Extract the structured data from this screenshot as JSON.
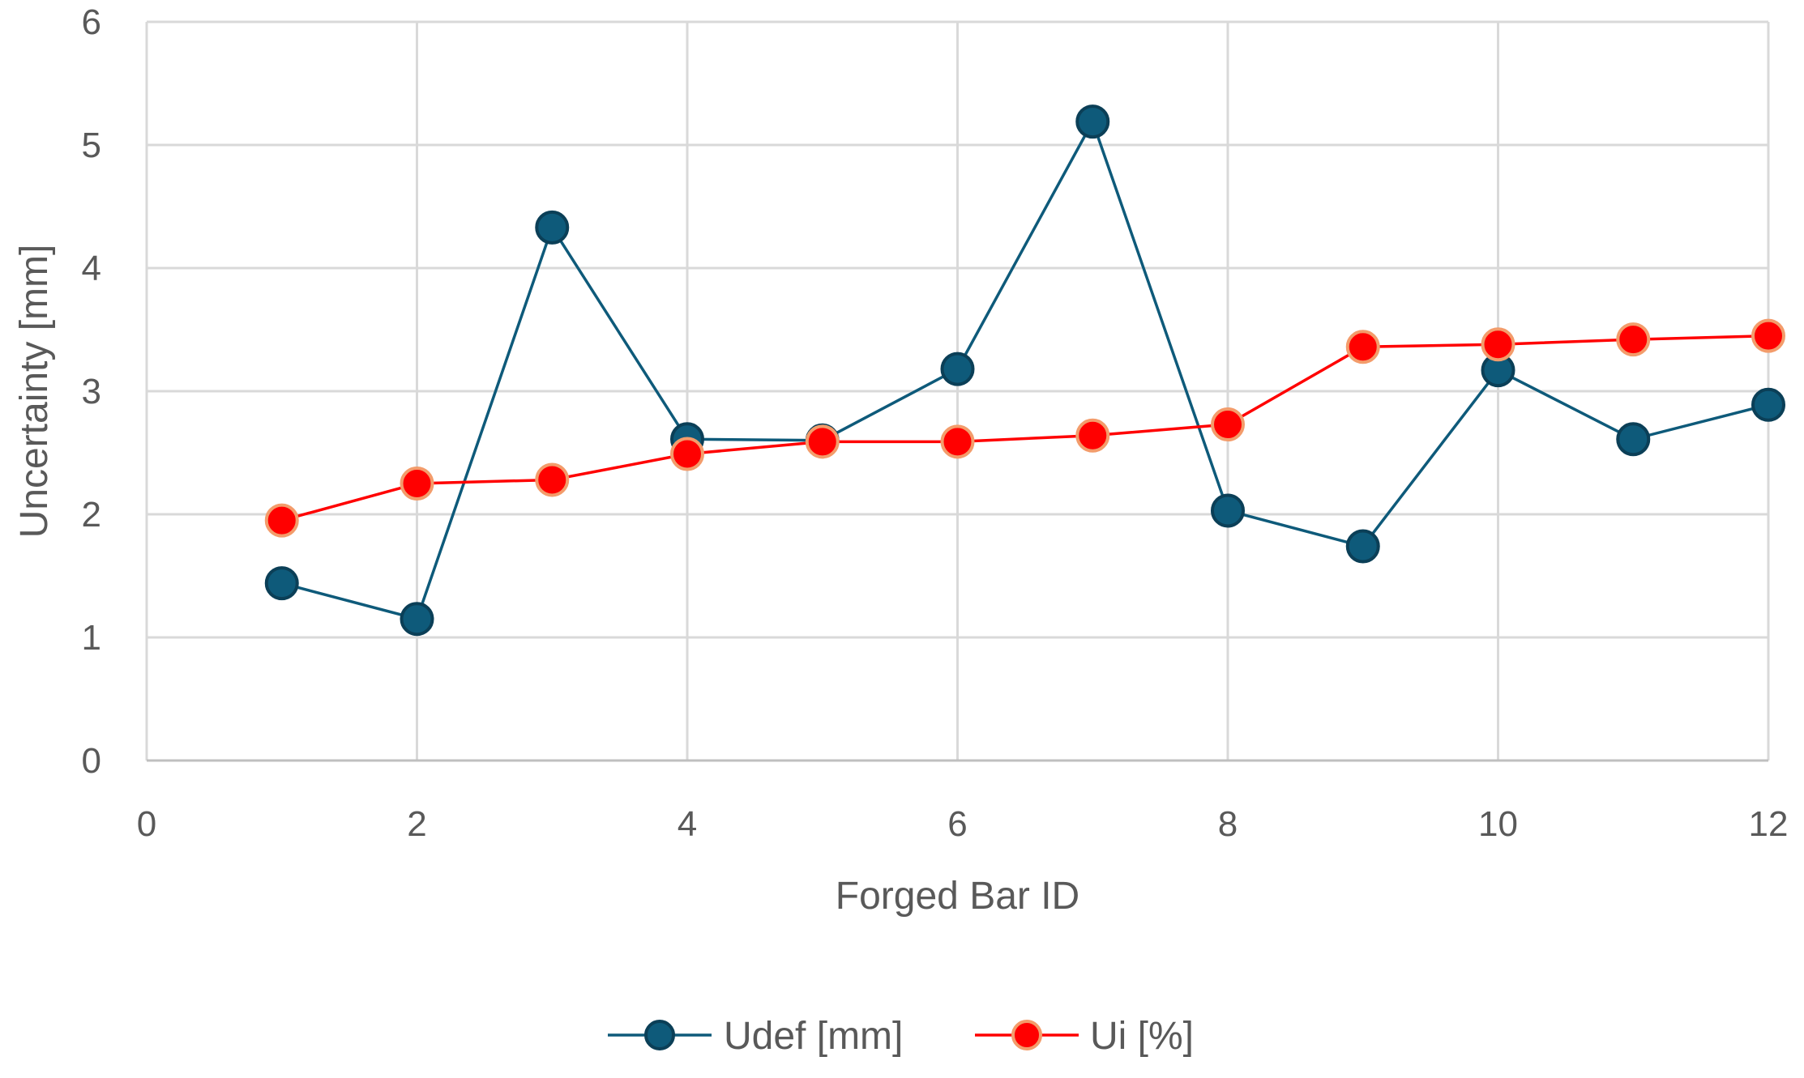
{
  "chart_data": {
    "type": "scatter",
    "title": "",
    "xlabel": "Forged Bar ID",
    "ylabel": "Uncertainty  [mm]",
    "xlim": [
      0,
      12
    ],
    "ylim": [
      0,
      6
    ],
    "xticks": [
      0,
      2,
      4,
      6,
      8,
      10,
      12
    ],
    "yticks": [
      0,
      1,
      2,
      3,
      4,
      5,
      6
    ],
    "grid": true,
    "legend_position": "bottom",
    "series": [
      {
        "name": "Udef [mm]",
        "color": "#0e5a7a",
        "marker_edge": "#0b3f57",
        "x": [
          1,
          2,
          3,
          4,
          5,
          6,
          7,
          8,
          9,
          10,
          11,
          12
        ],
        "y": [
          1.44,
          1.15,
          4.33,
          2.61,
          2.6,
          3.18,
          5.19,
          2.03,
          1.74,
          3.17,
          2.61,
          2.89
        ]
      },
      {
        "name": "Ui [%]",
        "color": "#ff0000",
        "marker_edge": "#f39c6b",
        "x": [
          1,
          2,
          3,
          4,
          5,
          6,
          7,
          8,
          9,
          10,
          11,
          12
        ],
        "y": [
          1.95,
          2.25,
          2.28,
          2.49,
          2.59,
          2.59,
          2.64,
          2.73,
          3.36,
          3.38,
          3.42,
          3.45
        ]
      }
    ]
  }
}
